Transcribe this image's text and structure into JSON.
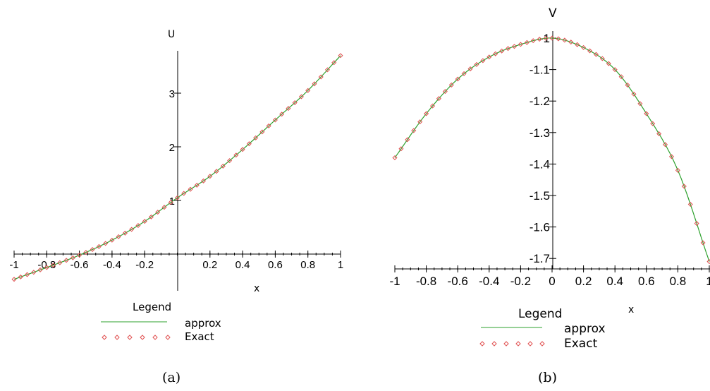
{
  "chart_data": [
    {
      "type": "line",
      "caption": "(a)",
      "xlabel": "x",
      "ylabel": "U",
      "xlim": [
        -1,
        1
      ],
      "ylim": [
        -0.65,
        3.8
      ],
      "x_ticks": [
        "-1",
        "-0.8",
        "-0.6",
        "-0.4",
        "-0.2",
        "0.2",
        "0.4",
        "0.6",
        "0.8",
        "1"
      ],
      "y_ticks": [
        "1",
        "2",
        "3"
      ],
      "legend_title": "Legend",
      "legend_placement": "below",
      "grid": false,
      "series": [
        {
          "name": "approx",
          "style": "line",
          "color": "#2ca02c",
          "x": [
            -1,
            -0.8,
            -0.6,
            -0.4,
            -0.2,
            0,
            0.2,
            0.4,
            0.6,
            0.8,
            1
          ],
          "values": [
            -0.47,
            -0.25,
            -0.02,
            0.26,
            0.61,
            1.05,
            1.45,
            1.95,
            2.5,
            3.05,
            3.7
          ]
        },
        {
          "name": "Exact",
          "style": "markers",
          "color": "#e05050",
          "x": [
            -1,
            -0.8,
            -0.6,
            -0.4,
            -0.2,
            0,
            0.2,
            0.4,
            0.6,
            0.8,
            1
          ],
          "values": [
            -0.47,
            -0.25,
            -0.02,
            0.26,
            0.61,
            1.05,
            1.45,
            1.95,
            2.5,
            3.05,
            3.7
          ]
        }
      ]
    },
    {
      "type": "line",
      "caption": "(b)",
      "xlabel": "x",
      "ylabel": "V",
      "xlim": [
        -1,
        1
      ],
      "ylim": [
        -1.72,
        -0.98
      ],
      "x_ticks": [
        "-1",
        "-0.8",
        "-0.6",
        "-0.4",
        "-0.2",
        "0",
        "0.2",
        "0.4",
        "0.6",
        "0.8",
        "1"
      ],
      "y_ticks": [
        "-1",
        "-1.1",
        "-1.2",
        "-1.3",
        "-1.4",
        "-1.5",
        "-1.6",
        "-1.7"
      ],
      "legend_title": "Legend",
      "legend_placement": "below",
      "grid": false,
      "series": [
        {
          "name": "approx",
          "style": "line",
          "color": "#2ca02c",
          "x": [
            -1,
            -0.8,
            -0.6,
            -0.4,
            -0.2,
            0,
            0.2,
            0.4,
            0.6,
            0.8,
            1
          ],
          "values": [
            -1.38,
            -1.24,
            -1.13,
            -1.06,
            -1.02,
            -1.0,
            -1.03,
            -1.1,
            -1.24,
            -1.42,
            -1.71
          ]
        },
        {
          "name": "Exact",
          "style": "markers",
          "color": "#e05050",
          "x": [
            -1,
            -0.8,
            -0.6,
            -0.4,
            -0.2,
            0,
            0.2,
            0.4,
            0.6,
            0.8,
            1
          ],
          "values": [
            -1.38,
            -1.24,
            -1.13,
            -1.06,
            -1.02,
            -1.0,
            -1.03,
            -1.1,
            -1.24,
            -1.42,
            -1.71
          ]
        }
      ]
    }
  ]
}
